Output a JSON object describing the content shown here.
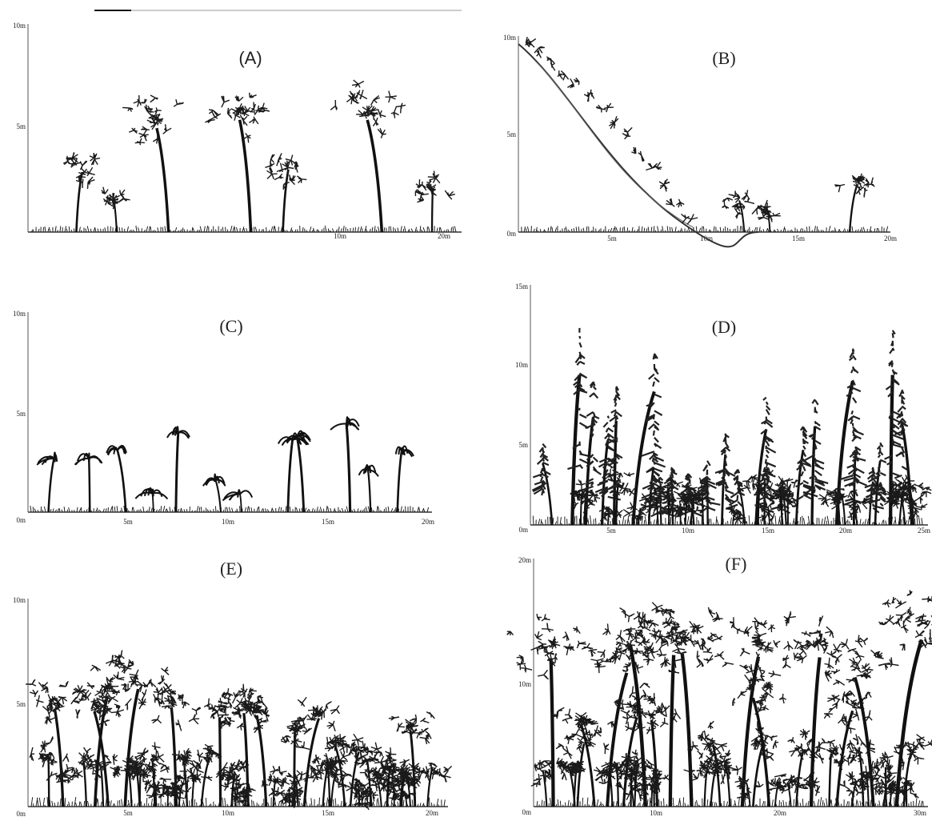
{
  "panels": [
    {
      "label": "(A)",
      "y_labels": [
        "10m",
        "5m"
      ],
      "x_labels": [
        "10m",
        "20m"
      ]
    },
    {
      "label": "(B)",
      "y_labels": [
        "10m",
        "5m",
        "0m"
      ],
      "x_labels": [
        "5m",
        "10m",
        "15m",
        "20m"
      ]
    },
    {
      "label": "(C)",
      "y_labels": [
        "10m",
        "5m",
        "0m"
      ],
      "x_labels": [
        "5m",
        "10m",
        "15m",
        "20m"
      ]
    },
    {
      "label": "(D)",
      "y_labels": [
        "15m",
        "10m",
        "5m",
        "0m"
      ],
      "x_labels": [
        "5m",
        "10m",
        "15m",
        "20m",
        "25m"
      ]
    },
    {
      "label": "(E)",
      "y_labels": [
        "10m",
        "5m",
        "0m"
      ],
      "x_labels": [
        "5m",
        "10m",
        "15m",
        "20m"
      ]
    },
    {
      "label": "(F)",
      "y_labels": [
        "20m",
        "10m",
        "0m"
      ],
      "x_labels": [
        "10m",
        "20m",
        "30m"
      ]
    }
  ]
}
